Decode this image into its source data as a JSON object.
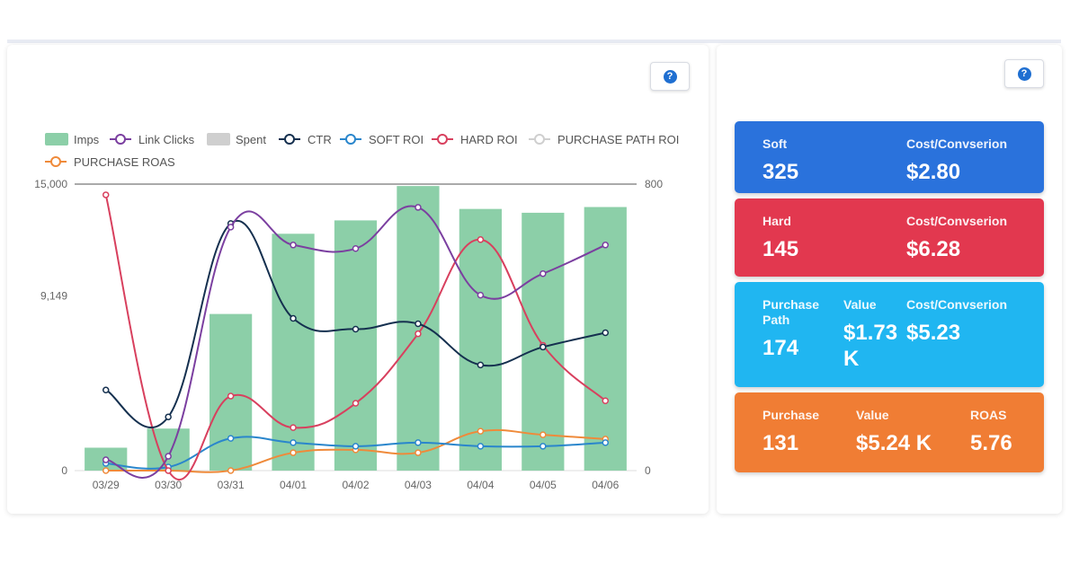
{
  "chart_data": {
    "type": "bar",
    "categories": [
      "03/29",
      "03/30",
      "03/31",
      "04/01",
      "04/02",
      "04/03",
      "04/04",
      "04/05",
      "04/06"
    ],
    "left_axis": {
      "ticks": [
        "15,000",
        "9,149",
        "0"
      ],
      "ylim": [
        0,
        15000
      ]
    },
    "right_axis": {
      "ticks": [
        "800",
        "0"
      ],
      "ylim": [
        0,
        800
      ]
    },
    "legend": [
      {
        "name": "Imps",
        "kind": "bar",
        "color": "#8ccfa8",
        "active": true
      },
      {
        "name": "Link Clicks",
        "kind": "line",
        "color": "#7b3fa0",
        "active": true
      },
      {
        "name": "Spent",
        "kind": "bar",
        "color": "#cfcfcf",
        "active": false
      },
      {
        "name": "CTR",
        "kind": "line",
        "color": "#15304f",
        "active": true
      },
      {
        "name": "SOFT ROI",
        "kind": "line",
        "color": "#2a86cc",
        "active": true
      },
      {
        "name": "HARD ROI",
        "kind": "line",
        "color": "#d8405e",
        "active": true
      },
      {
        "name": "PURCHASE PATH ROI",
        "kind": "line",
        "color": "#cfcfcf",
        "active": false
      },
      {
        "name": "PURCHASE ROAS",
        "kind": "line",
        "color": "#ef8a3a",
        "active": true
      }
    ],
    "series": [
      {
        "name": "Imps",
        "axis": "left",
        "values": [
          1200,
          2200,
          8200,
          12400,
          13100,
          14900,
          13700,
          13500,
          13800
        ]
      },
      {
        "name": "Link Clicks",
        "axis": "right",
        "values": [
          30,
          40,
          680,
          630,
          620,
          735,
          490,
          550,
          630
        ]
      },
      {
        "name": "CTR",
        "axis": "right",
        "values": [
          225,
          150,
          690,
          425,
          395,
          410,
          295,
          345,
          385
        ]
      },
      {
        "name": "SOFT ROI",
        "axis": "right",
        "values": [
          20,
          10,
          90,
          78,
          68,
          78,
          68,
          68,
          78
        ]
      },
      {
        "name": "HARD ROI",
        "axis": "right",
        "values": [
          770,
          0,
          208,
          120,
          188,
          382,
          645,
          350,
          195
        ]
      },
      {
        "name": "PURCHASE ROAS",
        "axis": "right",
        "values": [
          0,
          0,
          0,
          50,
          58,
          50,
          110,
          100,
          88
        ]
      }
    ]
  },
  "cards": [
    {
      "color": "#2a72dc",
      "stats": [
        {
          "label": "Soft",
          "value": "325"
        },
        {
          "label": "Cost/Convserion",
          "value": "$2.80"
        }
      ]
    },
    {
      "color": "#e2384f",
      "stats": [
        {
          "label": "Hard",
          "value": "145"
        },
        {
          "label": "Cost/Convserion",
          "value": "$6.28"
        }
      ]
    },
    {
      "color": "#20b6f1",
      "stats": [
        {
          "label": "Purchase Path",
          "value": "174"
        },
        {
          "label": "Value",
          "value": "$1.73 K"
        },
        {
          "label": "Cost/Convserion",
          "value": "$5.23"
        }
      ]
    },
    {
      "color": "#f07d34",
      "stats": [
        {
          "label": "Purchase",
          "value": "131"
        },
        {
          "label": "Value",
          "value": "$5.24 K"
        },
        {
          "label": "ROAS",
          "value": "5.76"
        }
      ]
    }
  ],
  "help": {
    "icon": "?"
  }
}
